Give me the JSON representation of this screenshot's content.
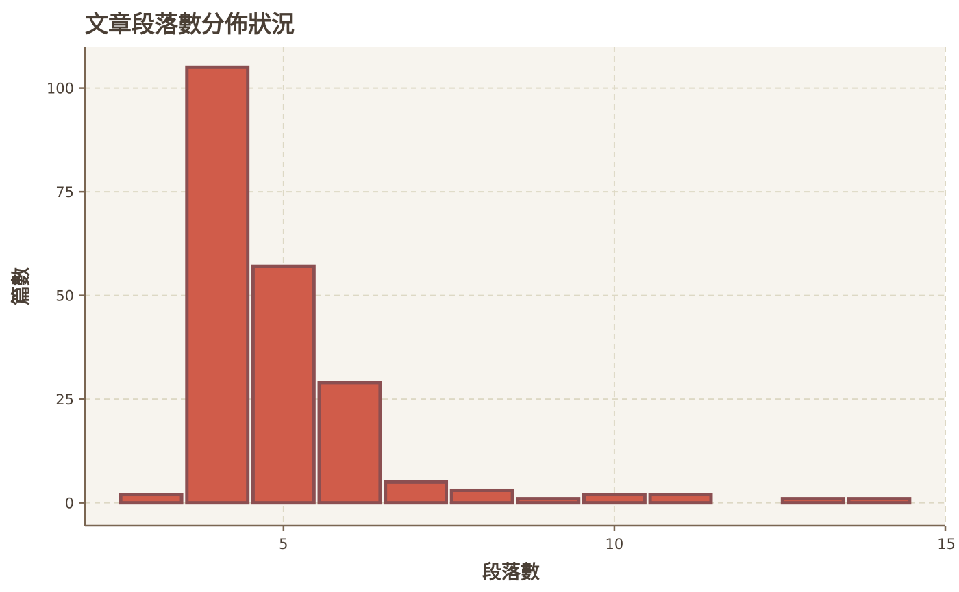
{
  "chart_data": {
    "type": "bar",
    "title": "文章段落數分佈狀況",
    "xlabel": "段落數",
    "ylabel": "篇數",
    "x": [
      3,
      4,
      5,
      6,
      7,
      8,
      9,
      10,
      11,
      12,
      13,
      14
    ],
    "values": [
      2,
      105,
      57,
      29,
      5,
      3,
      1,
      2,
      2,
      0,
      1,
      1
    ],
    "xlim": [
      2,
      15
    ],
    "ylim": [
      -5.5,
      110
    ],
    "xticks": [
      5,
      10,
      15
    ],
    "yticks": [
      0,
      25,
      50,
      75,
      100
    ],
    "grid": true,
    "colors": {
      "bar_fill": "#d05c4a",
      "bar_edge": "#8b4f51",
      "panel_bg": "#f7f4ee",
      "grid": "#ddd8c4",
      "axis": "#7a6652",
      "text": "#4a3f35"
    }
  }
}
